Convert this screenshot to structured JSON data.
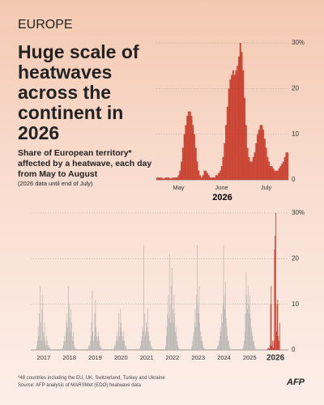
{
  "header": "EUROPE",
  "title": "Huge scale of heatwaves across the continent in 2026",
  "subtitle": "Share of European territory* affected by a heatwave, each day from May to August",
  "note": "(2026 data until end of July)",
  "footnote": "*48 countries including the EU, UK, Switzerland, Turkey and Ukraine",
  "source": "Source: AFP analysis of MARSMet (EDO) heatwave data",
  "logo": "AFP",
  "chart_data": [
    {
      "type": "bar",
      "xlabel": "2026",
      "color": "#c4301f",
      "grid": true,
      "ylim": [
        0,
        30
      ],
      "yticks": [
        0,
        10,
        20,
        {
          "value": 30,
          "label": "30%"
        }
      ],
      "categories": [
        null,
        null,
        null,
        null,
        null,
        null,
        null,
        null,
        null,
        null,
        null,
        null,
        null,
        null,
        null,
        "May",
        null,
        null,
        null,
        null,
        null,
        null,
        null,
        null,
        null,
        null,
        null,
        null,
        null,
        null,
        null,
        null,
        null,
        null,
        null,
        null,
        null,
        null,
        null,
        null,
        null,
        null,
        null,
        null,
        null,
        "June",
        null,
        null,
        null,
        null,
        null,
        null,
        null,
        null,
        null,
        null,
        null,
        null,
        null,
        null,
        null,
        null,
        null,
        null,
        null,
        null,
        null,
        null,
        null,
        null,
        null,
        null,
        null,
        null,
        null,
        null,
        "July",
        null,
        null,
        null,
        null,
        null,
        null,
        null,
        null,
        null,
        null,
        null,
        null,
        null,
        null,
        null
      ],
      "values": [
        0.5,
        0.5,
        0.5,
        0.5,
        0.3,
        0.3,
        0.5,
        0.5,
        0.5,
        0.3,
        0.3,
        0.5,
        0.5,
        0.5,
        0.5,
        1,
        2,
        4,
        7,
        10,
        12,
        14,
        15,
        15,
        14,
        12,
        10,
        7,
        4,
        2,
        1,
        0.5,
        1,
        2,
        2,
        1.5,
        1,
        0.5,
        0.5,
        0.5,
        0.5,
        1,
        1,
        1.5,
        2,
        3,
        5,
        8,
        12,
        16,
        20,
        22,
        23,
        24,
        23,
        24,
        25,
        27,
        30,
        28,
        24,
        18,
        12,
        7,
        5,
        4,
        4,
        5,
        6,
        8,
        10,
        11,
        12,
        12,
        11,
        9,
        7,
        5,
        4,
        3,
        3,
        2.5,
        2,
        2,
        2,
        2.5,
        3,
        3.5,
        4,
        5,
        6,
        6
      ]
    },
    {
      "type": "spikes",
      "grid": true,
      "ylim": [
        0,
        30
      ],
      "yticks": [
        0,
        10,
        20,
        {
          "value": 30,
          "label": "30%"
        }
      ],
      "series": [
        {
          "name": "2017",
          "color": "#b8b5b2",
          "values": [
            0,
            1,
            2,
            5,
            3,
            8,
            14,
            6,
            2,
            9,
            12,
            4,
            3,
            6,
            2,
            1,
            3,
            2,
            1,
            0.5,
            1,
            0.5,
            0,
            0
          ]
        },
        {
          "name": "2018",
          "color": "#b8b5b2",
          "values": [
            0,
            0.5,
            1,
            2,
            3,
            2,
            4,
            6,
            8,
            5,
            14,
            10,
            7,
            4,
            9,
            6,
            3,
            2,
            4,
            1,
            0.5,
            0.5,
            0,
            0
          ]
        },
        {
          "name": "2019",
          "color": "#b8b5b2",
          "values": [
            0,
            0.5,
            1,
            1,
            2,
            3,
            6,
            13,
            4,
            2,
            3,
            8,
            11,
            5,
            3,
            2,
            4,
            3,
            2,
            1,
            0.5,
            0.5,
            0,
            0
          ]
        },
        {
          "name": "2020",
          "color": "#b8b5b2",
          "values": [
            0,
            0.5,
            1,
            1,
            2,
            3,
            4,
            2,
            8,
            3,
            5,
            9,
            6,
            4,
            3,
            2,
            4,
            2,
            1,
            1,
            0.5,
            0,
            0,
            0
          ]
        },
        {
          "name": "2021",
          "color": "#b8b5b2",
          "values": [
            0,
            0.5,
            1,
            2,
            3,
            5,
            4,
            23,
            8,
            3,
            4,
            6,
            5,
            9,
            4,
            3,
            2,
            2,
            1,
            0.5,
            0.5,
            0,
            0,
            0
          ]
        },
        {
          "name": "2022",
          "color": "#b8b5b2",
          "values": [
            0,
            1,
            3,
            5,
            8,
            12,
            7,
            21,
            10,
            6,
            14,
            18,
            9,
            6,
            12,
            8,
            4,
            5,
            3,
            2,
            1,
            0.5,
            0,
            0
          ]
        },
        {
          "name": "2023",
          "color": "#b8b5b2",
          "values": [
            0,
            0.5,
            1,
            2,
            3,
            4,
            6,
            9,
            5,
            12,
            23,
            10,
            8,
            14,
            6,
            4,
            3,
            2,
            2,
            1,
            0.5,
            0.5,
            0,
            0
          ]
        },
        {
          "name": "2024",
          "color": "#b8b5b2",
          "values": [
            0,
            0.5,
            1,
            1,
            2,
            3,
            5,
            4,
            8,
            6,
            10,
            23,
            12,
            9,
            15,
            7,
            5,
            3,
            2,
            2,
            1,
            0.5,
            0,
            0
          ]
        },
        {
          "name": "2025",
          "color": "#b8b5b2",
          "values": [
            0,
            0.5,
            1,
            2,
            4,
            8,
            17,
            12,
            9,
            14,
            10,
            8,
            12,
            7,
            5,
            4,
            3,
            2,
            2,
            1,
            0.5,
            0,
            0,
            0
          ]
        },
        {
          "name": "2026",
          "color": "#c4301f",
          "values": [
            0.5,
            0.3,
            0.3,
            1,
            10,
            14,
            1,
            2,
            0.5,
            2,
            22,
            25,
            30,
            4,
            10,
            11,
            3,
            2,
            6,
            null,
            null,
            null,
            null,
            null
          ]
        }
      ]
    }
  ]
}
